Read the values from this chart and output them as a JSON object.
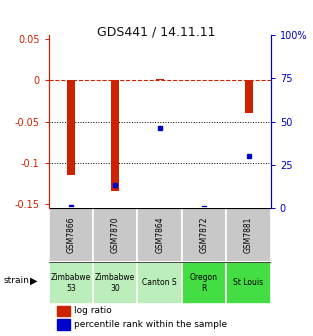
{
  "title": "GDS441 / 14.11.11",
  "samples": [
    "GSM7866",
    "GSM7870",
    "GSM7864",
    "GSM7872",
    "GSM7881"
  ],
  "log_ratios": [
    -0.115,
    -0.135,
    0.002,
    0.0,
    -0.04
  ],
  "percentile_ranks": [
    0.5,
    13.0,
    46.0,
    0.0,
    30.0
  ],
  "strain_labels": [
    "Zimbabwe\n53",
    "Zimbabwe\n30",
    "Canton S",
    "Oregon\nR",
    "St Louis"
  ],
  "strain_colors": [
    "#bbeebb",
    "#bbeebb",
    "#bbeebb",
    "#44dd44",
    "#44dd44"
  ],
  "gsm_bg_color": "#c8c8c8",
  "ylim_left": [
    -0.155,
    0.055
  ],
  "ylim_right": [
    0,
    100
  ],
  "yticks_left": [
    0.05,
    0.0,
    -0.05,
    -0.1,
    -0.15
  ],
  "yticks_right": [
    100,
    75,
    50,
    25,
    0
  ],
  "bar_color": "#cc2200",
  "dot_color": "#0000cc",
  "hline_y": 0.0,
  "dotted_lines": [
    -0.05,
    -0.1
  ],
  "legend_bar_label": "log ratio",
  "legend_dot_label": "percentile rank within the sample",
  "strain_row_label": "strain",
  "title_color": "#111111",
  "left_axis_color": "#cc2200",
  "right_axis_color": "#0000cc",
  "bar_width": 0.18
}
